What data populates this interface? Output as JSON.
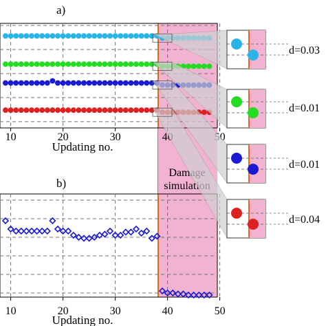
{
  "chart_data": [
    {
      "type": "scatter",
      "panel_label": "a)",
      "xlabel": "Updating no.",
      "ylabel": "",
      "x_ticks": [
        10,
        20,
        30,
        40,
        50
      ],
      "xlim": [
        9,
        50
      ],
      "ylim": [
        0,
        1
      ],
      "grid": true,
      "marker": "circle",
      "series": [
        {
          "color": "#29b6e6",
          "x": [
            9,
            10,
            11,
            12,
            13,
            14,
            15,
            16,
            17,
            18,
            19,
            20,
            21,
            22,
            23,
            24,
            25,
            26,
            27,
            28,
            29,
            30,
            31,
            32,
            33,
            34,
            35,
            36,
            37,
            38,
            39,
            40,
            41,
            42,
            43,
            44,
            45,
            46,
            47,
            48
          ],
          "values": [
            0.88,
            0.88,
            0.88,
            0.88,
            0.88,
            0.88,
            0.88,
            0.88,
            0.88,
            0.88,
            0.88,
            0.88,
            0.88,
            0.88,
            0.88,
            0.88,
            0.88,
            0.88,
            0.88,
            0.88,
            0.88,
            0.88,
            0.88,
            0.88,
            0.88,
            0.88,
            0.88,
            0.88,
            0.88,
            0.88,
            0.86,
            0.86,
            0.86,
            0.86,
            0.86,
            0.86,
            0.86,
            0.86,
            0.86,
            0.86
          ]
        },
        {
          "color": "#22dd22",
          "x": [
            9,
            10,
            11,
            12,
            13,
            14,
            15,
            16,
            17,
            18,
            19,
            20,
            21,
            22,
            23,
            24,
            25,
            26,
            27,
            28,
            29,
            30,
            31,
            32,
            33,
            34,
            35,
            36,
            37,
            38,
            39,
            40,
            41,
            42,
            43,
            44,
            45,
            46,
            47,
            48
          ],
          "values": [
            0.61,
            0.61,
            0.61,
            0.61,
            0.61,
            0.61,
            0.61,
            0.61,
            0.61,
            0.61,
            0.61,
            0.61,
            0.61,
            0.61,
            0.61,
            0.61,
            0.61,
            0.61,
            0.61,
            0.61,
            0.61,
            0.61,
            0.61,
            0.61,
            0.61,
            0.61,
            0.61,
            0.61,
            0.61,
            0.61,
            0.59,
            0.59,
            0.59,
            0.59,
            0.59,
            0.59,
            0.59,
            0.59,
            0.59,
            0.59
          ]
        },
        {
          "color": "#1a1ad0",
          "x": [
            9,
            10,
            11,
            12,
            13,
            14,
            15,
            16,
            17,
            18,
            19,
            20,
            21,
            22,
            23,
            24,
            25,
            26,
            27,
            28,
            29,
            30,
            31,
            32,
            33,
            34,
            35,
            36,
            37,
            38,
            39,
            40,
            41,
            42,
            43,
            44,
            45,
            46,
            47,
            48
          ],
          "values": [
            0.43,
            0.43,
            0.43,
            0.43,
            0.43,
            0.43,
            0.43,
            0.43,
            0.43,
            0.45,
            0.43,
            0.43,
            0.43,
            0.43,
            0.43,
            0.43,
            0.43,
            0.43,
            0.43,
            0.43,
            0.43,
            0.43,
            0.43,
            0.43,
            0.43,
            0.43,
            0.43,
            0.43,
            0.43,
            0.43,
            0.41,
            0.41,
            0.41,
            0.41,
            0.41,
            0.41,
            0.41,
            0.41,
            0.41,
            0.41
          ]
        },
        {
          "color": "#dd2020",
          "x": [
            9,
            10,
            11,
            12,
            13,
            14,
            15,
            16,
            17,
            18,
            19,
            20,
            21,
            22,
            23,
            24,
            25,
            26,
            27,
            28,
            29,
            30,
            31,
            32,
            33,
            34,
            35,
            36,
            37,
            38,
            39,
            40,
            41,
            42,
            43,
            44,
            45,
            46,
            47,
            48
          ],
          "values": [
            0.17,
            0.17,
            0.17,
            0.17,
            0.17,
            0.17,
            0.17,
            0.17,
            0.17,
            0.17,
            0.17,
            0.17,
            0.17,
            0.17,
            0.17,
            0.17,
            0.17,
            0.17,
            0.17,
            0.17,
            0.17,
            0.17,
            0.17,
            0.17,
            0.17,
            0.17,
            0.17,
            0.17,
            0.17,
            0.17,
            0.15,
            0.15,
            0.15,
            0.15,
            0.15,
            0.15,
            0.15,
            0.15,
            0.15,
            0.15
          ]
        }
      ],
      "annotations": [
        "d=0.03",
        "d=0.01",
        "d=0.01",
        "d=0.04"
      ]
    },
    {
      "type": "line",
      "panel_label": "b)",
      "xlabel": "Updating no.",
      "ylabel": "",
      "x_ticks": [
        10,
        20,
        30,
        40,
        50
      ],
      "xlim": [
        9,
        50
      ],
      "ylim": [
        0,
        1
      ],
      "grid": true,
      "marker": "diamond",
      "series": [
        {
          "color": "#1a1ad0",
          "x": [
            9,
            10,
            11,
            12,
            13,
            14,
            15,
            16,
            17,
            18,
            19,
            20,
            21,
            22,
            23,
            24,
            25,
            26,
            27,
            28,
            29,
            30,
            31,
            32,
            33,
            34,
            35,
            36,
            37,
            38,
            39,
            40,
            41,
            42,
            43,
            44,
            45,
            46,
            47,
            48
          ],
          "values": [
            0.74,
            0.66,
            0.64,
            0.64,
            0.64,
            0.64,
            0.64,
            0.64,
            0.64,
            0.74,
            0.66,
            0.64,
            0.64,
            0.6,
            0.58,
            0.57,
            0.57,
            0.58,
            0.6,
            0.61,
            0.64,
            0.6,
            0.6,
            0.63,
            0.63,
            0.66,
            0.62,
            0.64,
            0.57,
            0.59,
            0.06,
            0.04,
            0.04,
            0.03,
            0.03,
            0.02,
            0.02,
            0.02,
            0.02,
            0.02
          ]
        }
      ],
      "shaded_label": "Damage simulation"
    }
  ],
  "colors": {
    "highlight": "#f2b3d3",
    "divider": "#e06a1e",
    "grid": "#707070"
  }
}
